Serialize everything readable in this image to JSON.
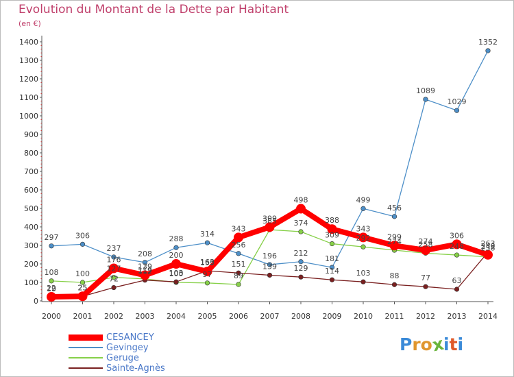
{
  "title": "Evolution du Montant de la Dette par Habitant",
  "subtitle": "(en €)",
  "logo": {
    "letters": [
      "P",
      "r",
      "o",
      "x",
      "i",
      "t",
      "i"
    ],
    "colors": [
      "#3a8ad8",
      "#e0962e",
      "#e0962e",
      "#6ab43c",
      "#3a8ad8",
      "#e05a2a",
      "#3a8ad8"
    ]
  },
  "chart_data": {
    "type": "line",
    "x": [
      "2000",
      "2001",
      "2002",
      "2003",
      "2004",
      "2005",
      "2006",
      "2007",
      "2008",
      "2009",
      "2010",
      "2011",
      "2012",
      "2013",
      "2014"
    ],
    "ylim": [
      0,
      1400
    ],
    "yticks": [
      0,
      100,
      200,
      300,
      400,
      500,
      600,
      700,
      800,
      900,
      1000,
      1100,
      1200,
      1300,
      1400
    ],
    "grid": false,
    "legend_position": "bottom-left",
    "series": [
      {
        "name": "CESANCEY",
        "color": "#ff0000",
        "values": [
          22,
          25,
          176,
          139,
          200,
          159,
          343,
          399,
          498,
          388,
          343,
          299,
          274,
          306,
          249
        ]
      },
      {
        "name": "Gevingey",
        "color": "#4d8fc8",
        "values": [
          297,
          306,
          237,
          208,
          288,
          314,
          256,
          196,
          212,
          181,
          499,
          456,
          1089,
          1029,
          1352
        ]
      },
      {
        "name": "Geruge",
        "color": "#86d048",
        "values": [
          108,
          100,
          127,
          119,
          100,
          97,
          89,
          385,
          374,
          309,
          292,
          274,
          258,
          248,
          238
        ]
      },
      {
        "name": "Sainte-Agnès",
        "color": "#7a2020",
        "values": [
          19,
          25,
          72,
          112,
          103,
          163,
          151,
          139,
          129,
          114,
          103,
          88,
          77,
          63,
          263
        ]
      }
    ]
  }
}
